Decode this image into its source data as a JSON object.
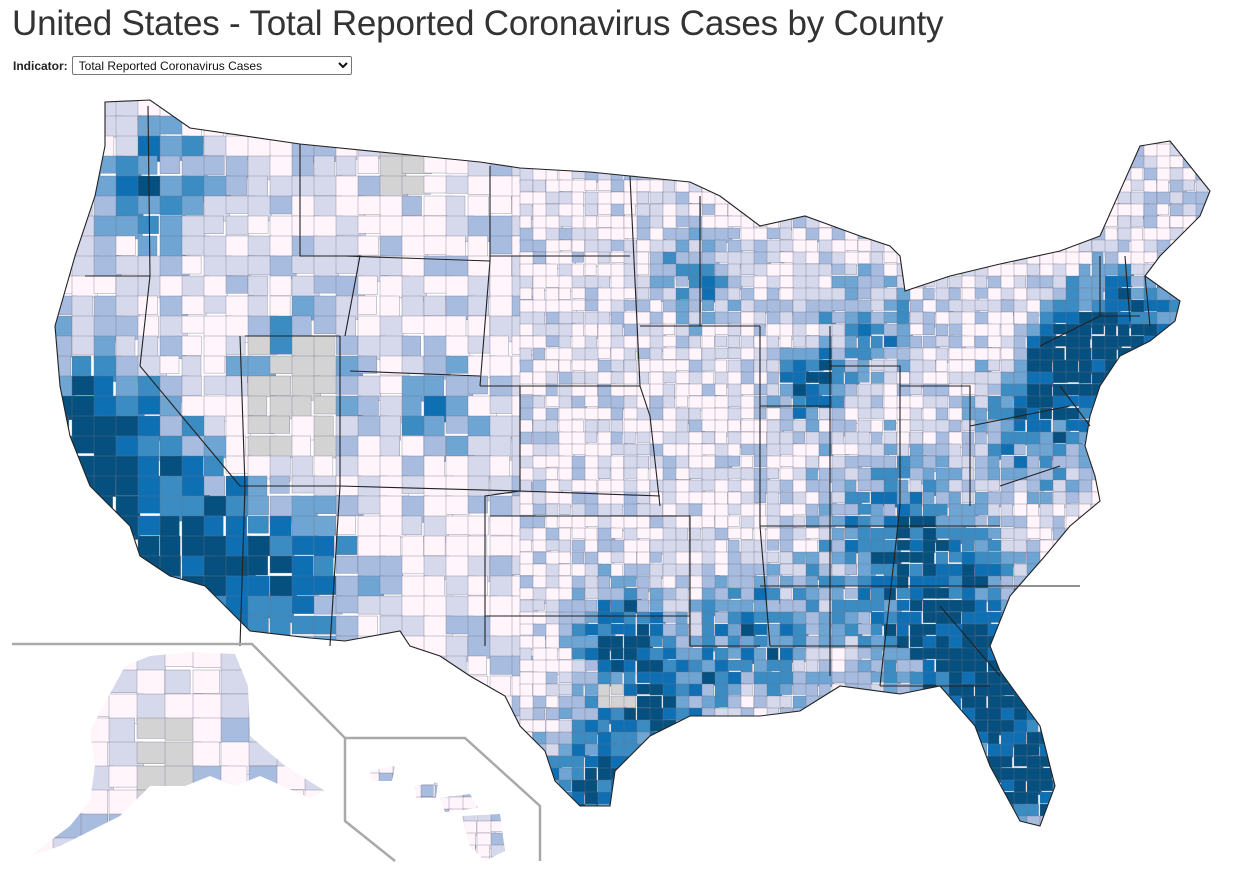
{
  "page": {
    "title": "United States - Total Reported Coronavirus Cases by County"
  },
  "controls": {
    "indicator_label": "Indicator:",
    "indicator_selected": "Total Reported Coronavirus Cases",
    "indicator_options": [
      "Total Reported Coronavirus Cases"
    ]
  },
  "map": {
    "type": "choropleth",
    "geography": "United States counties",
    "insets": [
      "Alaska",
      "Hawaii"
    ],
    "color_scale": [
      "#fff5fb",
      "#d6d8ec",
      "#a7bcde",
      "#6ea5d2",
      "#3a8cc2",
      "#0f6fb3",
      "#06507f"
    ],
    "no_data_color": "#d3d3d3",
    "border_color": "#222222"
  }
}
